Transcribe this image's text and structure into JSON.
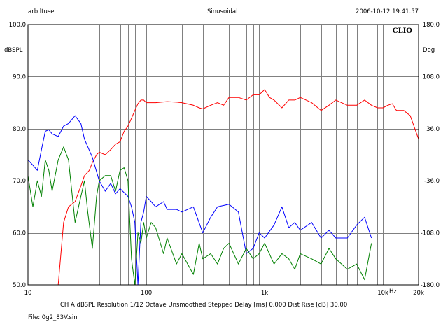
{
  "header": {
    "left": "arb ltuse",
    "center": "Sinusoidal",
    "right": "2006-10-12 19.41.57"
  },
  "brand": "CLIO",
  "axis_units": {
    "left": "dBSPL",
    "right": "Deg",
    "bottom": "Hz"
  },
  "footer": {
    "settings": "CH A   dBSPL   Resolution 1/12 Octave   Unsmoothed   Stepped     Delay [ms] 0.000    Dist Rise [dB] 30.00",
    "file": "File: 0g2_83V.sin"
  },
  "colors": {
    "background": "#ffffff",
    "grid": "#808080",
    "frame": "#000000",
    "series": [
      "#ff0000",
      "#0000ff",
      "#008000"
    ]
  },
  "chart_data": {
    "type": "line",
    "xscale": "log",
    "xlim": [
      10,
      20000
    ],
    "ylim": [
      50,
      100
    ],
    "y2lim": [
      -180,
      180
    ],
    "grid": true,
    "x_ticks": [
      {
        "value": 10,
        "label": "10"
      },
      {
        "value": 100,
        "label": "100"
      },
      {
        "value": 1000,
        "label": "1k"
      },
      {
        "value": 10000,
        "label": "10k"
      },
      {
        "value": 20000,
        "label": "20k"
      }
    ],
    "y_ticks": [
      "50.0",
      "60.0",
      "70.0",
      "80.0",
      "90.0",
      "100.0"
    ],
    "y2_ticks": [
      "-180.0",
      "-108.0",
      "-36.0",
      "36.0",
      "108.0",
      "180.0"
    ],
    "series": [
      {
        "color": "#ff0000",
        "x": [
          10,
          15,
          18,
          20,
          22,
          25,
          28,
          30,
          33,
          35,
          38,
          40,
          45,
          50,
          55,
          60,
          65,
          70,
          75,
          80,
          85,
          90,
          95,
          100,
          110,
          120,
          150,
          180,
          200,
          250,
          280,
          300,
          350,
          400,
          450,
          500,
          600,
          700,
          800,
          900,
          1000,
          1100,
          1200,
          1400,
          1600,
          1800,
          2000,
          2500,
          3000,
          3500,
          4000,
          5000,
          6000,
          7000,
          8000,
          9000,
          10000,
          11000,
          12000,
          13000,
          15000,
          17000,
          20000
        ],
        "values": [
          50,
          50,
          50,
          62,
          65,
          66,
          69,
          71,
          72,
          73.5,
          75,
          75.5,
          75,
          76,
          77,
          77.5,
          79.5,
          80.5,
          82,
          83.5,
          84.8,
          85.5,
          85.5,
          85,
          85,
          85,
          85.2,
          85.1,
          85,
          84.5,
          84,
          83.8,
          84.5,
          85,
          84.5,
          86,
          86,
          85.5,
          86.5,
          86.5,
          87.5,
          86,
          85.5,
          84,
          85.5,
          85.5,
          86,
          85,
          83.5,
          84.5,
          85.5,
          84.5,
          84.5,
          85.5,
          84.5,
          84,
          84,
          84.5,
          84.8,
          83.5,
          83.5,
          82.5,
          78
        ]
      },
      {
        "color": "#0000ff",
        "x": [
          10,
          11,
          12,
          13,
          14,
          15,
          16,
          18,
          20,
          22,
          25,
          28,
          30,
          35,
          40,
          45,
          50,
          55,
          60,
          70,
          75,
          80,
          85,
          90,
          95,
          100,
          110,
          120,
          140,
          150,
          180,
          200,
          250,
          300,
          350,
          400,
          500,
          600,
          700,
          800,
          900,
          1000,
          1200,
          1400,
          1600,
          1800,
          2000,
          2500,
          3000,
          3500,
          4000,
          5000,
          6000,
          7000,
          8000
        ],
        "values": [
          74,
          73,
          72,
          76,
          79.5,
          79.8,
          79,
          78.5,
          80.5,
          81,
          82.5,
          81,
          78,
          74.5,
          70,
          68,
          69.5,
          67.5,
          68.5,
          67,
          65,
          62,
          50,
          62,
          64,
          67,
          66,
          65,
          66,
          64.5,
          64.5,
          64,
          65,
          60,
          63,
          65,
          65.5,
          64,
          56,
          57,
          60,
          59,
          61.5,
          65,
          61,
          62,
          60.5,
          62,
          59,
          60.5,
          59,
          59,
          61.5,
          63,
          59
        ]
      },
      {
        "color": "#008000",
        "x": [
          10,
          11,
          12,
          13,
          14,
          15,
          16,
          18,
          20,
          22,
          25,
          28,
          30,
          32,
          35,
          38,
          40,
          45,
          50,
          55,
          60,
          65,
          70,
          75,
          80,
          85,
          90,
          95,
          100,
          110,
          120,
          140,
          150,
          180,
          200,
          250,
          280,
          300,
          350,
          400,
          450,
          500,
          600,
          700,
          800,
          900,
          1000,
          1200,
          1400,
          1600,
          1800,
          2000,
          2500,
          3000,
          3500,
          4000,
          5000,
          6000,
          7000,
          8000
        ],
        "values": [
          71,
          65,
          70,
          67,
          74,
          72,
          68,
          74,
          76.5,
          74,
          62,
          67,
          70,
          64,
          57,
          67,
          70,
          71,
          71,
          68,
          72,
          72.5,
          70,
          55,
          50,
          60,
          58,
          62,
          59,
          62,
          61,
          56,
          59,
          54,
          56,
          52,
          58,
          55,
          56,
          54,
          57,
          58,
          54,
          57,
          55,
          56,
          58,
          54,
          56,
          55,
          53,
          56,
          55,
          54,
          57,
          55,
          53,
          54,
          51,
          58
        ]
      }
    ]
  }
}
